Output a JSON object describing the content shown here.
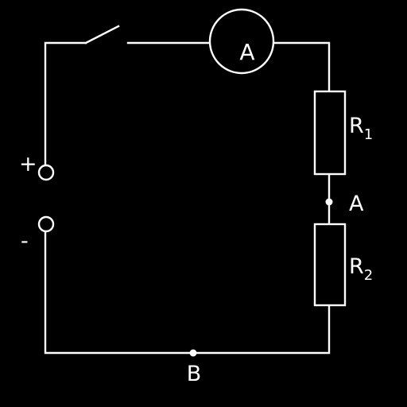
{
  "diagram": {
    "type": "electric-circuit",
    "background_color": "#000000",
    "line_color": "#ffffff",
    "terminals": {
      "positive_label": "+",
      "negative_label": "-"
    },
    "switch": {
      "state": "open"
    },
    "ammeter": {
      "symbol": "A"
    },
    "resistor_1": {
      "letter": "R",
      "index": "1"
    },
    "resistor_2": {
      "letter": "R",
      "index": "2"
    },
    "node_a": {
      "label": "A"
    },
    "node_b": {
      "label": "B"
    }
  }
}
